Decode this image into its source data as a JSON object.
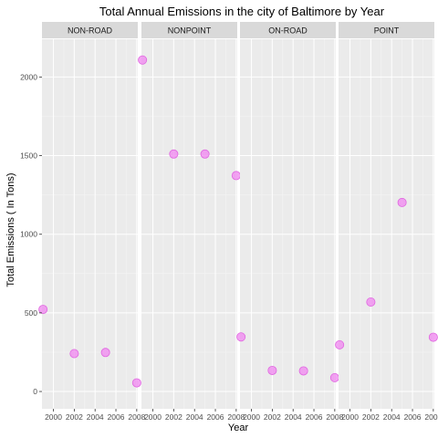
{
  "chart_data": {
    "type": "scatter",
    "title": "Total Annual Emissions in the city of Baltimore by Year",
    "xlabel": "Year",
    "ylabel": "Total Emissions ( In Tons)",
    "xlim": [
      1998.9,
      2008.1
    ],
    "ylim": [
      -110,
      2240
    ],
    "xticks": [
      2000,
      2002,
      2004,
      2006,
      2008
    ],
    "yticks": [
      0,
      500,
      1000,
      1500,
      2000
    ],
    "grid": true,
    "point_color": "#f08cf0",
    "point_stroke": "#e066e0",
    "panel_background": "#ebebeb",
    "strip_background": "#d9d9d9",
    "panels": [
      {
        "name": "NON-ROAD",
        "x": [
          1999,
          2002,
          2005,
          2008
        ],
        "y": [
          522,
          241,
          248,
          55
        ]
      },
      {
        "name": "NONPOINT",
        "x": [
          1999,
          2002,
          2005,
          2008
        ],
        "y": [
          2108,
          1510,
          1510,
          1373
        ]
      },
      {
        "name": "ON-ROAD",
        "x": [
          1999,
          2002,
          2005,
          2008
        ],
        "y": [
          347,
          134,
          131,
          88
        ]
      },
      {
        "name": "POINT",
        "x": [
          1999,
          2002,
          2005,
          2008
        ],
        "y": [
          297,
          569,
          1202,
          345
        ]
      }
    ]
  }
}
